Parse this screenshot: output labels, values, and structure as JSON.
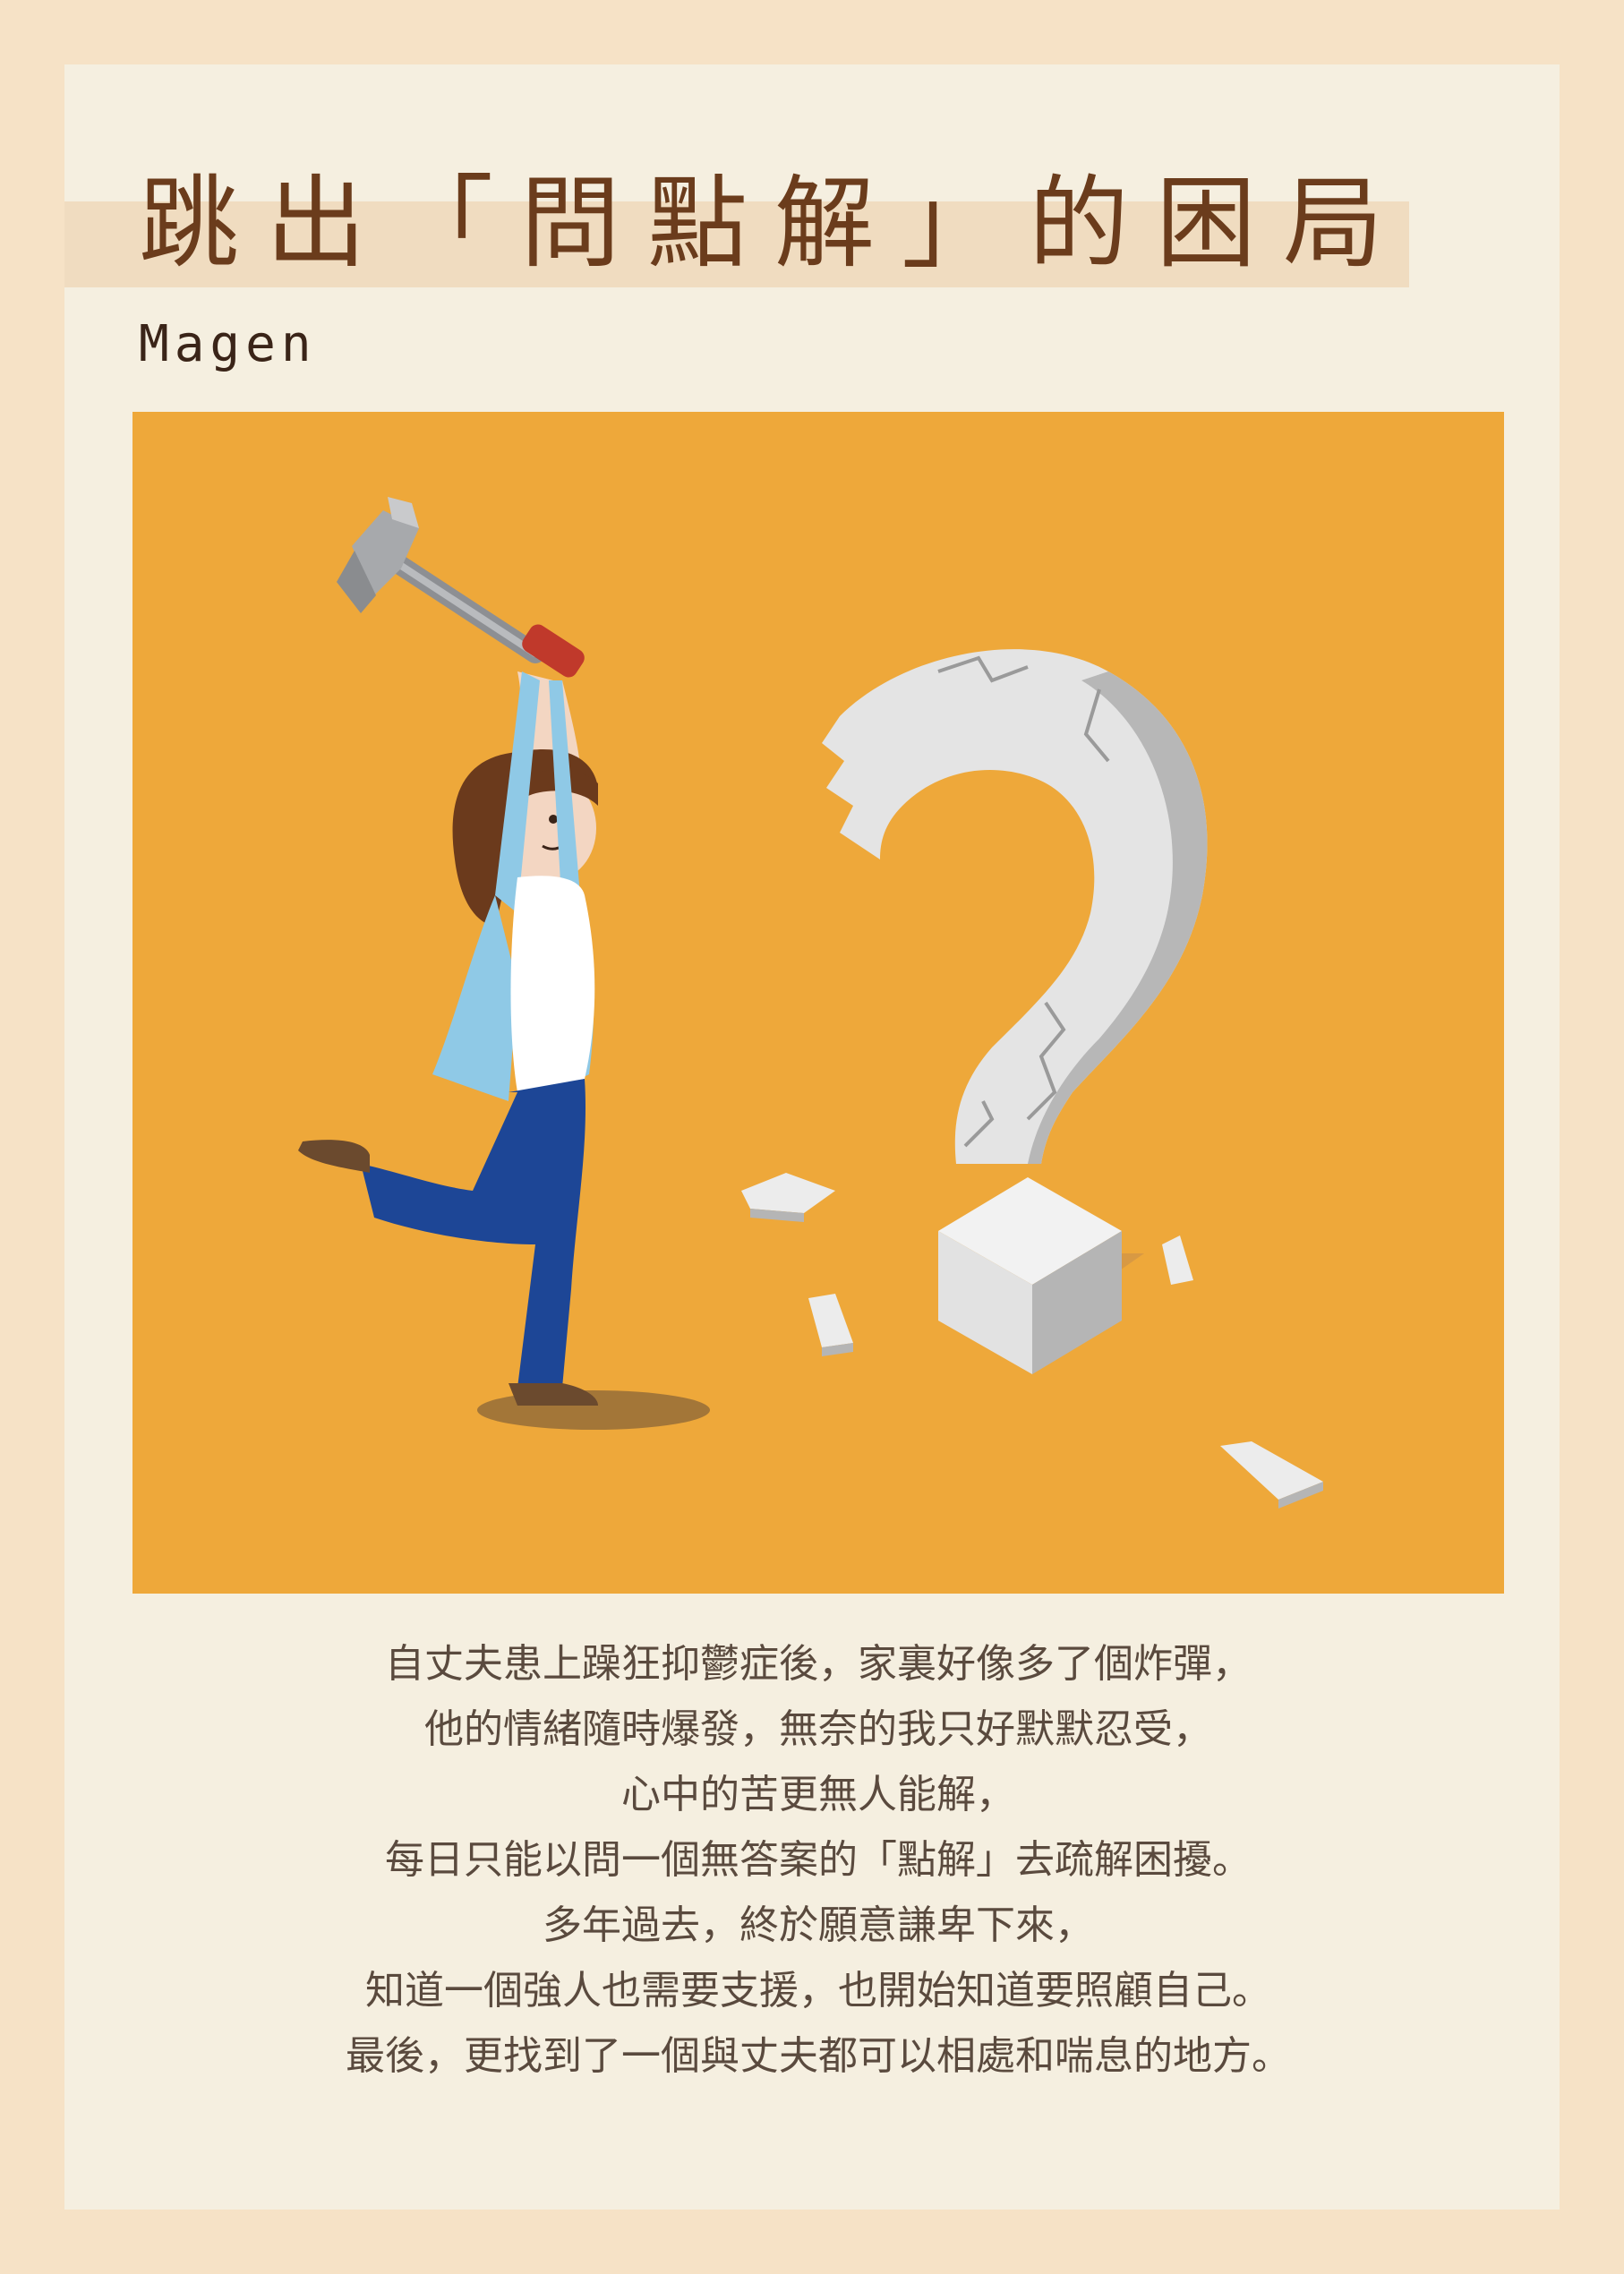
{
  "title": "跳出「問點解」的困局",
  "author": "Magen",
  "illustration": {
    "figures": [
      "woman-with-hammer",
      "broken-question-mark"
    ]
  },
  "story_lines": [
    "自丈夫患上躁狂抑鬱症後，家裏好像多了個炸彈，",
    "他的情緒隨時爆發，無奈的我只好默默忍受，",
    "心中的苦更無人能解，",
    "每日只能以問一個無答案的「點解」去疏解困擾。",
    "多年過去，終於願意謙卑下來，",
    "知道一個強人也需要支援，也開始知道要照顧自己。",
    "最後，更找到了一個與丈夫都可以相處和喘息的地方。"
  ],
  "colors": {
    "page_border": "#f6e2c6",
    "card": "#f5efe0",
    "title": "#6b3c1c",
    "illustration_bg": "#eea83a",
    "body_text": "#5a4a3e"
  }
}
